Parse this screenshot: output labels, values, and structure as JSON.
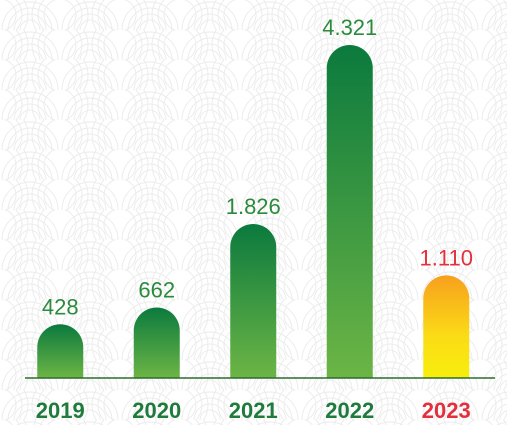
{
  "chart_data": {
    "type": "bar",
    "categories": [
      "2019",
      "2020",
      "2021",
      "2022",
      "2023"
    ],
    "values": [
      428,
      662,
      1826,
      4321,
      1110
    ],
    "value_labels": [
      "428",
      "662",
      "1.826",
      "4.321",
      "1.110"
    ],
    "colors": [
      "#4fa843",
      "#4fa843",
      "#4fa843",
      "#4fa843",
      "#fbd41c"
    ],
    "label_colors": [
      "#1e7b3c",
      "#1e7b3c",
      "#1e7b3c",
      "#1e7b3c",
      "#e3303c"
    ]
  }
}
